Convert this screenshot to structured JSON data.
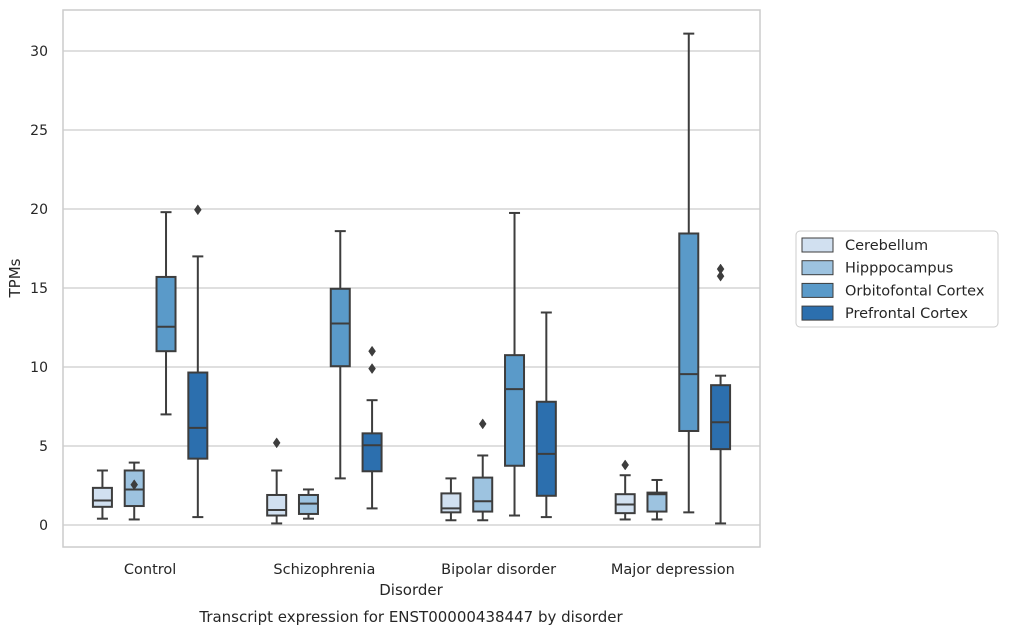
{
  "chart_data": {
    "type": "boxplot",
    "title": "",
    "caption": "Transcript expression for ENST00000438447 by disorder",
    "xlabel": "Disorder",
    "ylabel": "TPMs",
    "ylim": [
      -1.3,
      32.7
    ],
    "yticks": [
      0,
      5,
      10,
      15,
      20,
      25,
      30
    ],
    "categories": [
      "Control",
      "Schizophrenia",
      "Bipolar disorder",
      "Major depression"
    ],
    "grid": "horizontal",
    "legend_position": "right",
    "series": [
      {
        "name": "Cerebellum",
        "color": "#d1e0f0",
        "boxes": [
          {
            "whislo": 0.4,
            "q1": 1.15,
            "med": 1.55,
            "q3": 2.35,
            "whishi": 3.45,
            "fliers": []
          },
          {
            "whislo": 0.1,
            "q1": 0.6,
            "med": 0.95,
            "q3": 1.9,
            "whishi": 3.45,
            "fliers": [
              5.2
            ]
          },
          {
            "whislo": 0.3,
            "q1": 0.8,
            "med": 1.05,
            "q3": 2.0,
            "whishi": 2.95,
            "fliers": []
          },
          {
            "whislo": 0.35,
            "q1": 0.75,
            "med": 1.3,
            "q3": 1.95,
            "whishi": 3.15,
            "fliers": [
              3.8
            ]
          }
        ]
      },
      {
        "name": "Hipppocampus",
        "color": "#9dc3e0",
        "boxes": [
          {
            "whislo": 0.35,
            "q1": 1.2,
            "med": 2.25,
            "q3": 3.45,
            "whishi": 3.95,
            "fliers": [
              2.55
            ]
          },
          {
            "whislo": 0.4,
            "q1": 0.7,
            "med": 1.35,
            "q3": 1.9,
            "whishi": 2.25,
            "fliers": []
          },
          {
            "whislo": 0.3,
            "q1": 0.85,
            "med": 1.5,
            "q3": 3.0,
            "whishi": 4.4,
            "fliers": [
              6.4
            ]
          },
          {
            "whislo": 0.35,
            "q1": 0.85,
            "med": 1.95,
            "q3": 2.05,
            "whishi": 2.85,
            "fliers": []
          }
        ]
      },
      {
        "name": "Orbitofontal Cortex",
        "color": "#5a9ac9",
        "boxes": [
          {
            "whislo": 7.0,
            "q1": 11.0,
            "med": 12.55,
            "q3": 15.7,
            "whishi": 19.8,
            "fliers": []
          },
          {
            "whislo": 2.95,
            "q1": 10.05,
            "med": 12.75,
            "q3": 14.95,
            "whishi": 18.6,
            "fliers": []
          },
          {
            "whislo": 0.6,
            "q1": 3.75,
            "med": 8.6,
            "q3": 10.75,
            "whishi": 19.75,
            "fliers": []
          },
          {
            "whislo": 0.8,
            "q1": 5.95,
            "med": 9.55,
            "q3": 18.45,
            "whishi": 31.1,
            "fliers": []
          }
        ]
      },
      {
        "name": "Prefrontal Cortex",
        "color": "#2c6fae",
        "boxes": [
          {
            "whislo": 0.5,
            "q1": 4.2,
            "med": 6.15,
            "q3": 9.65,
            "whishi": 17.0,
            "fliers": [
              19.95
            ]
          },
          {
            "whislo": 1.05,
            "q1": 3.4,
            "med": 5.05,
            "q3": 5.8,
            "whishi": 7.9,
            "fliers": [
              11.0,
              9.9
            ]
          },
          {
            "whislo": 0.5,
            "q1": 1.85,
            "med": 4.5,
            "q3": 7.8,
            "whishi": 13.45,
            "fliers": []
          },
          {
            "whislo": 0.1,
            "q1": 4.8,
            "med": 6.5,
            "q3": 8.85,
            "whishi": 9.45,
            "fliers": [
              16.2,
              15.75
            ]
          }
        ]
      }
    ]
  }
}
